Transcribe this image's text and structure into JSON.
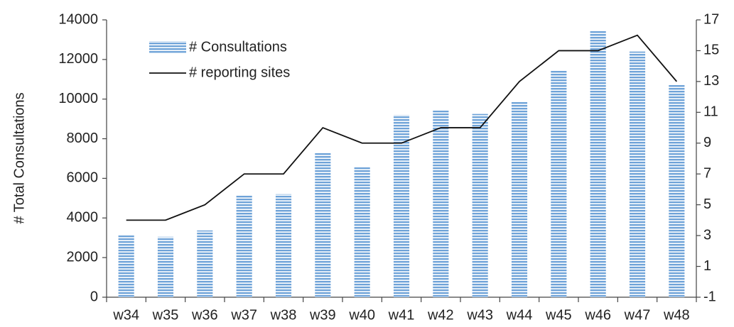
{
  "chart_data": {
    "type": "bar",
    "y_label": "# Total Consultations",
    "categories": [
      "w34",
      "w35",
      "w36",
      "w37",
      "w38",
      "w39",
      "w40",
      "w41",
      "w42",
      "w43",
      "w44",
      "w45",
      "w46",
      "w47",
      "w48"
    ],
    "series": [
      {
        "name": "# Consultations",
        "type": "bar",
        "color": "#6fa3d8",
        "values": [
          3150,
          3050,
          3370,
          5150,
          5200,
          7300,
          6600,
          9200,
          9450,
          9250,
          9850,
          11450,
          13450,
          12400,
          10750
        ]
      },
      {
        "name": "# reporting sites",
        "type": "line",
        "axis": "y2",
        "color": "#111111",
        "values": [
          4,
          4,
          5,
          7,
          7,
          10,
          9,
          9,
          10,
          10,
          13,
          15,
          15,
          16,
          13
        ]
      }
    ],
    "ylim": [
      0,
      14000
    ],
    "yticks": [
      0,
      2000,
      4000,
      6000,
      8000,
      10000,
      12000,
      14000
    ],
    "y2lim": [
      -1,
      17
    ],
    "y2ticks": [
      -1,
      1,
      3,
      5,
      7,
      9,
      11,
      13,
      15,
      17
    ],
    "legend": "upper left",
    "grid": false
  }
}
